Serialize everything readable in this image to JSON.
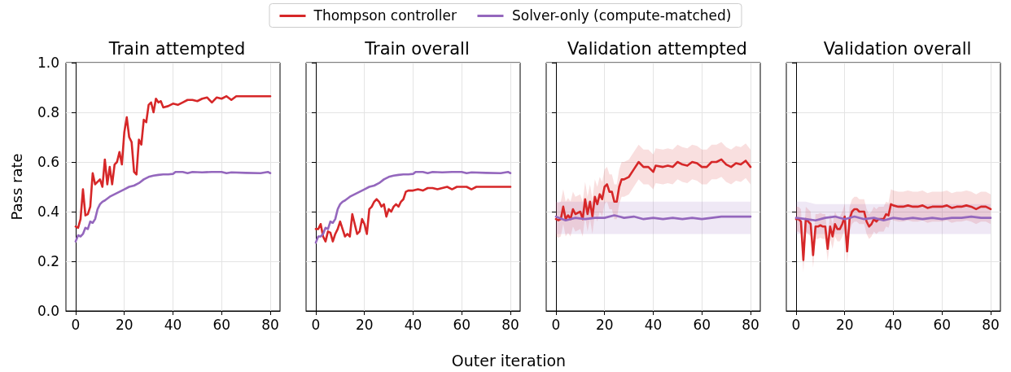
{
  "chart_data": [
    {
      "type": "line",
      "title": "Train attempted",
      "ylabel": "Pass rate",
      "legend": "top",
      "grid": true,
      "xlim": [
        -4,
        84
      ],
      "xticks": [
        0,
        20,
        40,
        60,
        80
      ],
      "ylim": [
        0,
        1
      ],
      "yticks": [
        {
          "value": 0,
          "label": "0.0"
        },
        0.2,
        0.4,
        0.6,
        0.8,
        {
          "value": 1,
          "label": "1.0"
        }
      ],
      "series": [
        {
          "name": "Thompson controller",
          "color": "#d62728",
          "x": [
            0,
            1,
            2,
            3,
            4,
            5,
            6,
            7,
            8,
            9,
            10,
            11,
            12,
            13,
            14,
            15,
            16,
            17,
            18,
            19,
            20,
            21,
            22,
            23,
            24,
            25,
            26,
            27,
            28,
            29,
            30,
            31,
            32,
            33,
            34,
            35,
            36,
            38,
            40,
            42,
            44,
            46,
            48,
            50,
            52,
            54,
            56,
            58,
            60,
            62,
            64,
            66,
            80
          ],
          "values": [
            0.34,
            0.335,
            0.37,
            0.49,
            0.385,
            0.39,
            0.42,
            0.555,
            0.51,
            0.52,
            0.53,
            0.5,
            0.61,
            0.51,
            0.58,
            0.51,
            0.59,
            0.6,
            0.64,
            0.59,
            0.72,
            0.78,
            0.7,
            0.68,
            0.56,
            0.55,
            0.69,
            0.67,
            0.77,
            0.76,
            0.83,
            0.84,
            0.8,
            0.855,
            0.84,
            0.845,
            0.82,
            0.825,
            0.835,
            0.83,
            0.84,
            0.85,
            0.85,
            0.845,
            0.855,
            0.86,
            0.84,
            0.86,
            0.855,
            0.865,
            0.85,
            0.865,
            0.865
          ]
        },
        {
          "name": "Solver-only (compute-matched)",
          "color": "#9467bd",
          "x": [
            0,
            1,
            2,
            3,
            4,
            5,
            6,
            7,
            8,
            9,
            10,
            11,
            12,
            14,
            16,
            18,
            20,
            22,
            24,
            26,
            28,
            30,
            32,
            34,
            36,
            38,
            40,
            41,
            44,
            46,
            48,
            52,
            56,
            60,
            62,
            64,
            70,
            76,
            79,
            80
          ],
          "values": [
            0.28,
            0.305,
            0.3,
            0.31,
            0.335,
            0.33,
            0.36,
            0.355,
            0.37,
            0.41,
            0.43,
            0.44,
            0.445,
            0.46,
            0.47,
            0.48,
            0.49,
            0.5,
            0.505,
            0.515,
            0.53,
            0.54,
            0.545,
            0.548,
            0.55,
            0.55,
            0.552,
            0.56,
            0.56,
            0.555,
            0.56,
            0.558,
            0.56,
            0.56,
            0.555,
            0.558,
            0.556,
            0.555,
            0.56,
            0.555
          ]
        }
      ]
    },
    {
      "type": "line",
      "title": "Train overall",
      "xlabel": "Outer iteration",
      "grid": true,
      "tick_labels": "x",
      "xlim": [
        -4,
        84
      ],
      "xticks": [
        0,
        20,
        40,
        60,
        80
      ],
      "ylim": [
        0,
        1
      ],
      "yticks": [
        0,
        0.2,
        0.4,
        0.6,
        0.8,
        1
      ],
      "series": [
        {
          "color": "#d62728",
          "x": [
            0,
            1,
            2,
            3,
            4,
            5,
            6,
            7,
            8,
            9,
            10,
            11,
            12,
            13,
            14,
            15,
            16,
            17,
            18,
            19,
            20,
            21,
            22,
            23,
            24,
            25,
            26,
            27,
            28,
            29,
            30,
            31,
            32,
            33,
            34,
            35,
            36,
            37,
            38,
            40,
            42,
            44,
            46,
            48,
            50,
            52,
            54,
            56,
            58,
            62,
            64,
            66,
            80
          ],
          "values": [
            0.33,
            0.33,
            0.35,
            0.3,
            0.28,
            0.32,
            0.315,
            0.28,
            0.31,
            0.33,
            0.36,
            0.33,
            0.3,
            0.31,
            0.3,
            0.39,
            0.35,
            0.31,
            0.32,
            0.37,
            0.35,
            0.31,
            0.41,
            0.42,
            0.44,
            0.45,
            0.44,
            0.42,
            0.43,
            0.38,
            0.41,
            0.4,
            0.42,
            0.43,
            0.42,
            0.44,
            0.45,
            0.48,
            0.485,
            0.485,
            0.49,
            0.485,
            0.495,
            0.495,
            0.49,
            0.495,
            0.5,
            0.49,
            0.5,
            0.5,
            0.49,
            0.5,
            0.5
          ]
        },
        {
          "color": "#9467bd",
          "x": [
            0,
            1,
            2,
            3,
            4,
            5,
            6,
            7,
            8,
            9,
            10,
            11,
            12,
            14,
            16,
            18,
            20,
            22,
            24,
            26,
            28,
            30,
            32,
            34,
            36,
            38,
            40,
            41,
            44,
            46,
            48,
            52,
            56,
            60,
            62,
            64,
            70,
            76,
            79,
            80
          ],
          "values": [
            0.275,
            0.3,
            0.3,
            0.31,
            0.335,
            0.33,
            0.36,
            0.355,
            0.37,
            0.41,
            0.43,
            0.44,
            0.445,
            0.46,
            0.47,
            0.48,
            0.49,
            0.5,
            0.505,
            0.515,
            0.53,
            0.54,
            0.545,
            0.548,
            0.55,
            0.55,
            0.552,
            0.56,
            0.56,
            0.555,
            0.56,
            0.558,
            0.56,
            0.56,
            0.555,
            0.558,
            0.556,
            0.555,
            0.56,
            0.555
          ]
        }
      ]
    },
    {
      "type": "line",
      "title": "Validation attempted",
      "grid": true,
      "tick_labels": "x",
      "xlim": [
        -4,
        84
      ],
      "xticks": [
        0,
        20,
        40,
        60,
        80
      ],
      "ylim": [
        0,
        1
      ],
      "yticks": [
        0,
        0.2,
        0.4,
        0.6,
        0.8,
        1
      ],
      "series": [
        {
          "color": "#d62728",
          "x": [
            0,
            1,
            2,
            3,
            4,
            5,
            6,
            7,
            8,
            9,
            10,
            11,
            12,
            13,
            14,
            15,
            16,
            17,
            18,
            19,
            20,
            21,
            22,
            23,
            24,
            25,
            26,
            27,
            28,
            30,
            32,
            34,
            36,
            38,
            40,
            41,
            44,
            46,
            48,
            50,
            52,
            54,
            56,
            58,
            60,
            62,
            64,
            66,
            68,
            70,
            72,
            74,
            76,
            78,
            80
          ],
          "values": [
            0.37,
            0.365,
            0.37,
            0.42,
            0.37,
            0.385,
            0.37,
            0.41,
            0.39,
            0.395,
            0.4,
            0.37,
            0.45,
            0.39,
            0.44,
            0.38,
            0.46,
            0.43,
            0.47,
            0.45,
            0.5,
            0.51,
            0.48,
            0.48,
            0.44,
            0.44,
            0.5,
            0.53,
            0.53,
            0.54,
            0.57,
            0.6,
            0.58,
            0.58,
            0.56,
            0.585,
            0.58,
            0.585,
            0.58,
            0.6,
            0.59,
            0.585,
            0.6,
            0.595,
            0.58,
            0.58,
            0.6,
            0.6,
            0.61,
            0.59,
            0.58,
            0.595,
            0.59,
            0.605,
            0.58
          ],
          "lower": [
            0.3,
            0.295,
            0.3,
            0.35,
            0.3,
            0.315,
            0.3,
            0.34,
            0.32,
            0.325,
            0.33,
            0.3,
            0.38,
            0.32,
            0.37,
            0.31,
            0.39,
            0.36,
            0.4,
            0.38,
            0.43,
            0.44,
            0.41,
            0.41,
            0.37,
            0.37,
            0.43,
            0.46,
            0.46,
            0.47,
            0.5,
            0.53,
            0.51,
            0.51,
            0.49,
            0.515,
            0.51,
            0.515,
            0.51,
            0.53,
            0.52,
            0.515,
            0.53,
            0.525,
            0.51,
            0.51,
            0.53,
            0.53,
            0.54,
            0.52,
            0.51,
            0.525,
            0.52,
            0.535,
            0.51
          ],
          "upper": [
            0.44,
            0.435,
            0.44,
            0.49,
            0.44,
            0.455,
            0.44,
            0.48,
            0.46,
            0.465,
            0.47,
            0.44,
            0.52,
            0.46,
            0.51,
            0.45,
            0.53,
            0.5,
            0.54,
            0.52,
            0.57,
            0.58,
            0.55,
            0.55,
            0.51,
            0.51,
            0.57,
            0.6,
            0.6,
            0.61,
            0.64,
            0.67,
            0.65,
            0.65,
            0.63,
            0.655,
            0.65,
            0.655,
            0.65,
            0.67,
            0.66,
            0.655,
            0.67,
            0.665,
            0.65,
            0.65,
            0.67,
            0.67,
            0.68,
            0.66,
            0.65,
            0.665,
            0.66,
            0.675,
            0.65
          ]
        },
        {
          "color": "#9467bd",
          "x": [
            0,
            4,
            8,
            12,
            16,
            20,
            24,
            28,
            32,
            36,
            40,
            44,
            48,
            52,
            56,
            60,
            64,
            68,
            72,
            76,
            80
          ],
          "values": [
            0.38,
            0.365,
            0.375,
            0.37,
            0.375,
            0.375,
            0.385,
            0.375,
            0.38,
            0.37,
            0.375,
            0.37,
            0.375,
            0.37,
            0.375,
            0.37,
            0.375,
            0.38,
            0.38,
            0.38,
            0.38
          ],
          "lower": [
            0.31,
            0.31,
            0.31,
            0.31,
            0.31,
            0.31,
            0.31,
            0.31,
            0.31,
            0.31,
            0.31,
            0.31,
            0.31,
            0.31,
            0.31,
            0.31,
            0.31,
            0.31,
            0.31,
            0.31,
            0.31
          ],
          "upper": [
            0.44,
            0.44,
            0.44,
            0.44,
            0.44,
            0.44,
            0.44,
            0.44,
            0.44,
            0.44,
            0.44,
            0.44,
            0.44,
            0.44,
            0.44,
            0.44,
            0.44,
            0.44,
            0.44,
            0.44,
            0.44
          ]
        }
      ]
    },
    {
      "type": "line",
      "title": "Validation overall",
      "grid": true,
      "tick_labels": "x",
      "xlim": [
        -4,
        84
      ],
      "xticks": [
        0,
        20,
        40,
        60,
        80
      ],
      "ylim": [
        0,
        1
      ],
      "yticks": [
        0,
        0.2,
        0.4,
        0.6,
        0.8,
        1
      ],
      "series": [
        {
          "color": "#d62728",
          "x": [
            0,
            1,
            2,
            3,
            4,
            5,
            6,
            7,
            8,
            9,
            10,
            11,
            12,
            13,
            14,
            15,
            16,
            17,
            18,
            19,
            20,
            21,
            22,
            23,
            24,
            25,
            26,
            27,
            28,
            29,
            30,
            31,
            32,
            33,
            34,
            35,
            36,
            37,
            38,
            39,
            40,
            42,
            44,
            46,
            48,
            50,
            52,
            54,
            56,
            58,
            60,
            62,
            64,
            66,
            68,
            70,
            72,
            74,
            76,
            78,
            80
          ],
          "values": [
            0.37,
            0.37,
            0.36,
            0.205,
            0.37,
            0.36,
            0.35,
            0.225,
            0.34,
            0.34,
            0.345,
            0.34,
            0.34,
            0.25,
            0.34,
            0.3,
            0.35,
            0.33,
            0.33,
            0.35,
            0.38,
            0.24,
            0.37,
            0.4,
            0.41,
            0.41,
            0.4,
            0.4,
            0.4,
            0.36,
            0.34,
            0.35,
            0.37,
            0.36,
            0.37,
            0.37,
            0.37,
            0.39,
            0.385,
            0.43,
            0.425,
            0.42,
            0.42,
            0.425,
            0.42,
            0.42,
            0.425,
            0.415,
            0.42,
            0.42,
            0.42,
            0.425,
            0.415,
            0.42,
            0.42,
            0.425,
            0.42,
            0.41,
            0.42,
            0.42,
            0.41
          ],
          "lower": [
            0.32,
            0.32,
            0.31,
            0.155,
            0.32,
            0.31,
            0.3,
            0.175,
            0.29,
            0.29,
            0.295,
            0.29,
            0.29,
            0.2,
            0.29,
            0.25,
            0.3,
            0.28,
            0.28,
            0.3,
            0.33,
            0.19,
            0.32,
            0.35,
            0.36,
            0.36,
            0.35,
            0.35,
            0.35,
            0.31,
            0.29,
            0.3,
            0.32,
            0.31,
            0.32,
            0.32,
            0.32,
            0.34,
            0.335,
            0.37,
            0.365,
            0.36,
            0.36,
            0.365,
            0.36,
            0.36,
            0.365,
            0.355,
            0.36,
            0.36,
            0.36,
            0.365,
            0.355,
            0.36,
            0.36,
            0.365,
            0.36,
            0.35,
            0.36,
            0.36,
            0.35
          ],
          "upper": [
            0.42,
            0.42,
            0.41,
            0.255,
            0.42,
            0.41,
            0.4,
            0.275,
            0.39,
            0.39,
            0.395,
            0.39,
            0.39,
            0.3,
            0.39,
            0.35,
            0.4,
            0.38,
            0.38,
            0.4,
            0.43,
            0.29,
            0.42,
            0.45,
            0.46,
            0.46,
            0.45,
            0.45,
            0.45,
            0.41,
            0.39,
            0.4,
            0.42,
            0.41,
            0.42,
            0.42,
            0.42,
            0.44,
            0.435,
            0.49,
            0.485,
            0.48,
            0.48,
            0.485,
            0.48,
            0.48,
            0.485,
            0.475,
            0.48,
            0.48,
            0.48,
            0.485,
            0.475,
            0.48,
            0.48,
            0.485,
            0.48,
            0.47,
            0.48,
            0.48,
            0.47
          ]
        },
        {
          "color": "#9467bd",
          "x": [
            0,
            4,
            8,
            12,
            16,
            20,
            24,
            28,
            32,
            36,
            40,
            44,
            48,
            52,
            56,
            60,
            64,
            68,
            72,
            76,
            80
          ],
          "values": [
            0.375,
            0.37,
            0.365,
            0.375,
            0.38,
            0.37,
            0.38,
            0.37,
            0.375,
            0.365,
            0.375,
            0.37,
            0.375,
            0.37,
            0.375,
            0.37,
            0.375,
            0.375,
            0.38,
            0.375,
            0.375
          ],
          "lower": [
            0.31,
            0.31,
            0.31,
            0.31,
            0.31,
            0.31,
            0.31,
            0.31,
            0.31,
            0.31,
            0.31,
            0.31,
            0.31,
            0.31,
            0.31,
            0.31,
            0.31,
            0.31,
            0.31,
            0.31,
            0.31
          ],
          "upper": [
            0.44,
            0.44,
            0.43,
            0.43,
            0.43,
            0.43,
            0.43,
            0.43,
            0.43,
            0.43,
            0.43,
            0.43,
            0.43,
            0.43,
            0.43,
            0.43,
            0.43,
            0.43,
            0.43,
            0.43,
            0.43
          ]
        }
      ]
    }
  ]
}
